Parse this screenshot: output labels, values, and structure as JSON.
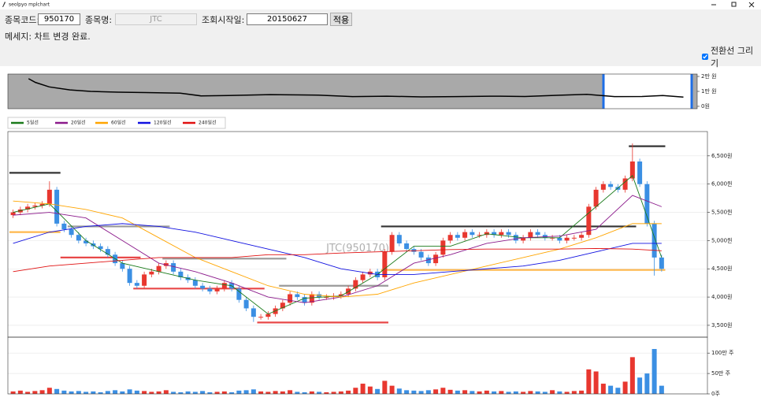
{
  "window": {
    "title": "seolpyo mplchart"
  },
  "form": {
    "code_label": "종목코드:",
    "code": "950170",
    "name_label": "종목명:",
    "name": "JTC",
    "start_label": "조회시작일:",
    "start": "20150627",
    "apply": "적용"
  },
  "message": "메세지: 차트 변경 완료.",
  "checkbox": {
    "label": "전환선 그리기",
    "checked": true
  },
  "chart_data": [
    {
      "type": "line",
      "color": "#000000",
      "background": "#a9a9a9",
      "x": [
        3,
        4,
        6,
        9,
        12,
        16,
        20,
        25,
        28,
        32,
        38,
        45,
        50,
        55,
        60,
        65,
        70,
        75,
        80,
        84,
        88,
        92,
        95,
        98
      ],
      "values": [
        18500,
        16000,
        13000,
        11000,
        10000,
        9500,
        9200,
        8800,
        7000,
        7200,
        7800,
        7500,
        6500,
        6800,
        6300,
        6500,
        6800,
        6600,
        7400,
        8000,
        6500,
        6600,
        7200,
        6200
      ],
      "xlim": [
        0,
        100
      ],
      "selection": [
        86.4,
        99.2
      ],
      "selection_color": "#1e6ee6",
      "ylim": [
        -1600,
        21600
      ],
      "yticks": [
        {
          "value": 20000,
          "label": "2만 원"
        },
        {
          "value": 10000,
          "label": "1만 원"
        },
        {
          "value": 0,
          "label": "0원"
        }
      ]
    },
    {
      "type": "candlestick",
      "watermark": "JTC(950170)",
      "up_color": "#e8372f",
      "down_color": "#3b8fe3",
      "grid": true,
      "open": [
        5450,
        5500,
        5550,
        5600,
        5620,
        5650,
        5900,
        5300,
        5200,
        5100,
        5000,
        4950,
        4900,
        4850,
        4750,
        4600,
        4500,
        4250,
        4200,
        4400,
        4450,
        4550,
        4600,
        4450,
        4350,
        4300,
        4200,
        4150,
        4100,
        4150,
        4250,
        4150,
        3950,
        3800,
        3650,
        3650,
        3700,
        3800,
        3900,
        4050,
        4000,
        3900,
        4050,
        4000,
        4000,
        4020,
        4050,
        4150,
        4300,
        4400,
        4450,
        4350,
        4800,
        5100,
        4950,
        4850,
        4800,
        4700,
        4600,
        4750,
        5000,
        5100,
        5050,
        5150,
        5100,
        5100,
        5150,
        5100,
        5150,
        5100,
        5000,
        5050,
        5150,
        5100,
        5050,
        5050,
        5000,
        5050,
        5050,
        5100,
        5600,
        5900,
        6000,
        5950,
        5900,
        6100,
        6400,
        6000,
        5300,
        4700
      ],
      "high": [
        5550,
        5600,
        5650,
        5670,
        5700,
        6050,
        5950,
        5350,
        5250,
        5150,
        5050,
        5000,
        4950,
        4900,
        4800,
        4650,
        4550,
        4300,
        4450,
        4500,
        4600,
        4650,
        4650,
        4500,
        4400,
        4350,
        4250,
        4200,
        4200,
        4300,
        4300,
        4200,
        4000,
        3850,
        3700,
        3750,
        3850,
        3950,
        4100,
        4100,
        4050,
        4100,
        4100,
        4050,
        4070,
        4100,
        4200,
        4350,
        4450,
        4500,
        4500,
        4850,
        5150,
        5150,
        5000,
        4900,
        4850,
        4750,
        4800,
        5050,
        5150,
        5150,
        5200,
        5200,
        5150,
        5200,
        5200,
        5200,
        5200,
        5150,
        5100,
        5200,
        5200,
        5150,
        5100,
        5100,
        5100,
        5100,
        5150,
        5650,
        5950,
        6050,
        6050,
        6000,
        6150,
        6720,
        6450,
        6050,
        5350,
        4750
      ],
      "low": [
        5400,
        5450,
        5500,
        5550,
        5570,
        5600,
        5250,
        5150,
        5050,
        4950,
        4900,
        4850,
        4800,
        4700,
        4550,
        4450,
        4200,
        4150,
        4150,
        4350,
        4400,
        4500,
        4400,
        4300,
        4250,
        4150,
        4100,
        4050,
        4050,
        4100,
        4100,
        3900,
        3750,
        3560,
        3600,
        3600,
        3650,
        3750,
        3850,
        3950,
        3850,
        3850,
        3950,
        3950,
        3950,
        3970,
        4000,
        4100,
        4250,
        4350,
        4300,
        4300,
        4750,
        4900,
        4800,
        4750,
        4650,
        4550,
        4550,
        4700,
        4950,
        5000,
        5000,
        5050,
        5050,
        5050,
        5050,
        5050,
        5050,
        4950,
        4950,
        5000,
        5050,
        5000,
        5000,
        4950,
        4950,
        5000,
        5000,
        5050,
        5550,
        5850,
        5900,
        5850,
        5850,
        6050,
        5950,
        5250,
        4380,
        4450
      ],
      "close": [
        5500,
        5550,
        5600,
        5620,
        5650,
        5900,
        5300,
        5200,
        5100,
        5000,
        4950,
        4900,
        4850,
        4750,
        4600,
        4500,
        4250,
        4200,
        4400,
        4450,
        4550,
        4600,
        4450,
        4350,
        4300,
        4200,
        4150,
        4100,
        4150,
        4250,
        4150,
        3950,
        3800,
        3650,
        3650,
        3700,
        3800,
        3900,
        4050,
        4000,
        3900,
        4050,
        4000,
        4000,
        4020,
        4050,
        4150,
        4300,
        4400,
        4450,
        4350,
        4800,
        5100,
        4950,
        4850,
        4800,
        4700,
        4600,
        4750,
        5000,
        5100,
        5050,
        5150,
        5100,
        5100,
        5150,
        5100,
        5150,
        5100,
        5000,
        5050,
        5150,
        5100,
        5050,
        5050,
        5000,
        5050,
        5050,
        5100,
        5600,
        5900,
        6000,
        5950,
        5900,
        6100,
        6400,
        6000,
        5300,
        4700,
        4500
      ],
      "series": [
        {
          "name": "5일선",
          "color": "#1a7a1a",
          "x": [
            0,
            5,
            10,
            15,
            20,
            25,
            30,
            35,
            40,
            45,
            50,
            55,
            60,
            65,
            70,
            75,
            80,
            85,
            89
          ],
          "values": [
            5500,
            5650,
            5000,
            4600,
            4450,
            4300,
            4200,
            3700,
            3980,
            4020,
            4400,
            4900,
            4900,
            5120,
            5050,
            5050,
            5600,
            6150,
            4700
          ]
        },
        {
          "name": "20일선",
          "color": "#8b1a8b",
          "x": [
            0,
            5,
            10,
            15,
            20,
            25,
            30,
            35,
            40,
            45,
            50,
            55,
            60,
            65,
            70,
            75,
            80,
            85,
            89
          ],
          "values": [
            5450,
            5500,
            5400,
            5000,
            4600,
            4450,
            4250,
            4000,
            3900,
            4000,
            4200,
            4600,
            4750,
            4950,
            5050,
            5080,
            5200,
            5800,
            5600
          ]
        },
        {
          "name": "60일선",
          "color": "#ffa500",
          "x": [
            0,
            5,
            10,
            15,
            20,
            25,
            30,
            35,
            40,
            45,
            50,
            55,
            60,
            65,
            70,
            75,
            80,
            85,
            89
          ],
          "values": [
            5700,
            5650,
            5550,
            5400,
            5050,
            4700,
            4450,
            4200,
            4050,
            4000,
            4050,
            4250,
            4400,
            4550,
            4700,
            4850,
            5050,
            5300,
            5300
          ]
        },
        {
          "name": "120일선",
          "color": "#1010e0",
          "x": [
            0,
            5,
            10,
            15,
            20,
            25,
            30,
            35,
            40,
            45,
            50,
            55,
            60,
            65,
            70,
            75,
            80,
            85,
            89
          ],
          "values": [
            4950,
            5150,
            5250,
            5300,
            5250,
            5150,
            5000,
            4850,
            4700,
            4500,
            4400,
            4400,
            4450,
            4500,
            4550,
            4650,
            4800,
            4950,
            4950
          ]
        },
        {
          "name": "240일선",
          "color": "#e01010",
          "x": [
            0,
            5,
            10,
            15,
            20,
            25,
            30,
            35,
            40,
            45,
            50,
            55,
            60,
            65,
            70,
            75,
            80,
            85,
            89
          ],
          "values": [
            4450,
            4550,
            4600,
            4650,
            4700,
            4700,
            4700,
            4750,
            4750,
            4780,
            4800,
            4820,
            4840,
            4850,
            4850,
            4850,
            4860,
            4850,
            4820
          ]
        }
      ],
      "levels": [
        {
          "from": 0,
          "to": 6,
          "value": 6200,
          "color": "#333333"
        },
        {
          "from": 0,
          "to": 6,
          "value": 5150,
          "color": "#ffb84d"
        },
        {
          "from": 8,
          "to": 21,
          "value": 5250,
          "color": "#999999"
        },
        {
          "from": 7,
          "to": 17,
          "value": 4700,
          "color": "#e84848"
        },
        {
          "from": 21,
          "to": 37,
          "value": 4680,
          "color": "#999999"
        },
        {
          "from": 17,
          "to": 34,
          "value": 4150,
          "color": "#e84848"
        },
        {
          "from": 37,
          "to": 51,
          "value": 4200,
          "color": "#999999"
        },
        {
          "from": 34,
          "to": 51,
          "value": 3550,
          "color": "#e84848"
        },
        {
          "from": 51,
          "to": 85,
          "value": 5250,
          "color": "#333333"
        },
        {
          "from": 51,
          "to": 89,
          "value": 4480,
          "color": "#ffb84d"
        },
        {
          "from": 85,
          "to": 89,
          "value": 6670,
          "color": "#333333"
        }
      ],
      "ylim": [
        3290,
        6930
      ],
      "yticks": [
        {
          "value": 3500,
          "label": "3,500원"
        },
        {
          "value": 4000,
          "label": "4,000원"
        },
        {
          "value": 4500,
          "label": "4,500원"
        },
        {
          "value": 5000,
          "label": "5,000원"
        },
        {
          "value": 5500,
          "label": "5,500원"
        },
        {
          "value": 6000,
          "label": "6,000원"
        },
        {
          "value": 6500,
          "label": "6,500원"
        }
      ]
    },
    {
      "type": "bar",
      "grid": true,
      "values": [
        60000,
        80000,
        50000,
        70000,
        90000,
        150000,
        120000,
        80000,
        60000,
        70000,
        50000,
        60000,
        40000,
        70000,
        90000,
        60000,
        110000,
        80000,
        70000,
        50000,
        60000,
        90000,
        50000,
        40000,
        60000,
        50000,
        70000,
        40000,
        50000,
        60000,
        40000,
        80000,
        90000,
        110000,
        60000,
        50000,
        70000,
        60000,
        90000,
        50000,
        40000,
        60000,
        50000,
        40000,
        50000,
        60000,
        80000,
        150000,
        250000,
        180000,
        120000,
        320000,
        200000,
        130000,
        90000,
        80000,
        70000,
        90000,
        110000,
        150000,
        100000,
        80000,
        90000,
        70000,
        60000,
        80000,
        60000,
        70000,
        50000,
        60000,
        50000,
        70000,
        60000,
        50000,
        90000,
        60000,
        50000,
        70000,
        80000,
        600000,
        550000,
        250000,
        200000,
        150000,
        300000,
        900000,
        400000,
        500000,
        1100000,
        200000
      ],
      "ylim": [
        0,
        1390000
      ],
      "yticks": [
        {
          "value": 0,
          "label": "0주"
        },
        {
          "value": 500000,
          "label": "50만 주"
        },
        {
          "value": 1000000,
          "label": "100만 주"
        }
      ]
    }
  ]
}
